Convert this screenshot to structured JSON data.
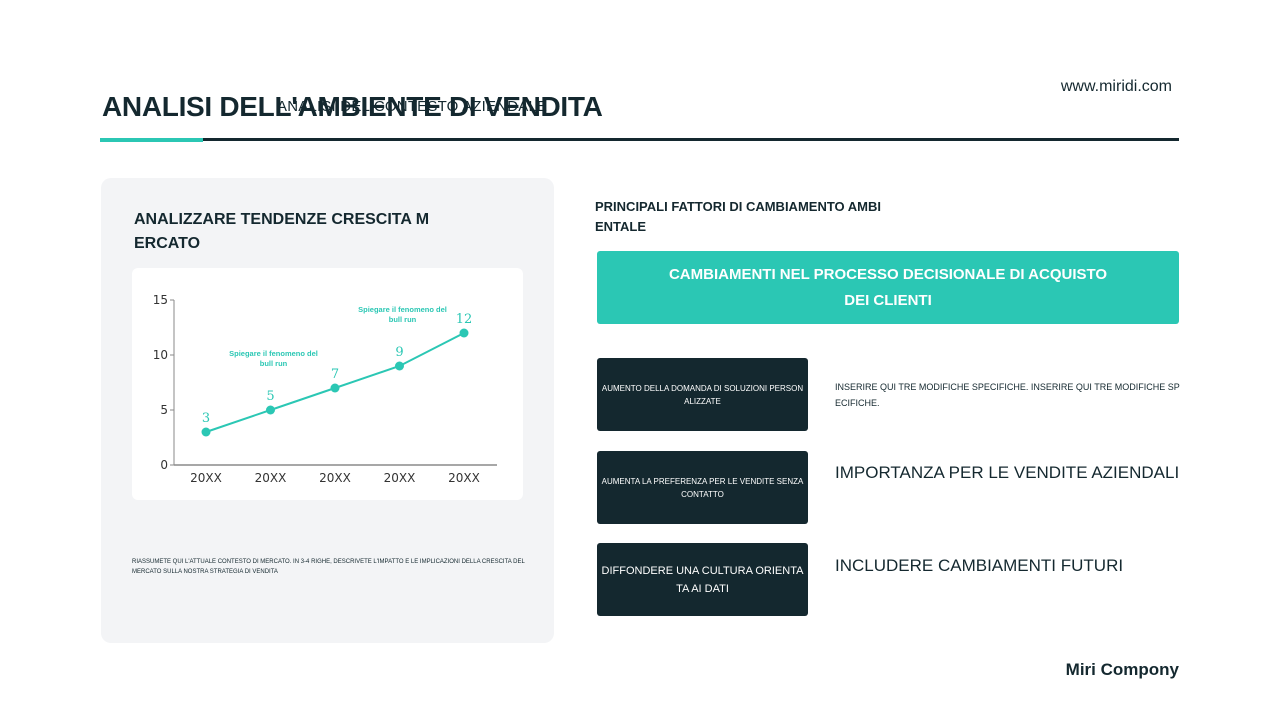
{
  "header": {
    "title": "ANALISI DELL'AMBIENTE DI VENDITA",
    "subtitle": "Analisi del contesto aziendale",
    "website": "www.miridi.com"
  },
  "left_panel": {
    "title": "ANALIZZARE TENDENZE CRESCITA MERCATO",
    "summary": "RIASSUMETE QUI L'ATTUALE CONTESTO DI MERCATO. IN 3-4 RIGHE, DESCRIVETE L'IMPATTO E LE IMPLICAZIONI DELLA CRESCITA DEL MERCATO SULLA NOSTRA STRATEGIA DI VENDITA"
  },
  "chart_data": {
    "type": "line",
    "categories": [
      "20XX",
      "20XX",
      "20XX",
      "20XX",
      "20XX"
    ],
    "values": [
      3,
      5,
      7,
      9,
      12
    ],
    "ylim": [
      0,
      15
    ],
    "yticks": [
      0,
      5,
      10,
      15
    ],
    "grid": false,
    "color": "#2bc7b4",
    "annotations": [
      {
        "text": [
          "Spiegare il fenomeno del",
          "bull run"
        ],
        "category_index": 1,
        "value": 5
      },
      {
        "text": [
          "Spiegare il fenomeno del",
          "bull run"
        ],
        "category_index": 3,
        "value": 9
      }
    ]
  },
  "right_panel": {
    "heading": "PRINCIPALI FATTORI DI CAMBIAMENTO AMBIENTALE",
    "banner": "CAMBIAMENTI NEL PROCESSO DECISIONALE DI ACQUISTO DEI CLIENTI",
    "factors": [
      {
        "label": "AUMENTO DELLA DOMANDA DI SOLUZIONI PERSONALIZZATE",
        "description": "INSERIRE QUI TRE MODIFICHE SPECIFICHE. INSERIRE QUI TRE MODIFICHE SPECIFICHE."
      },
      {
        "label": "AUMENTA LA PREFERENZA PER LE VENDITE SENZA CONTATTO",
        "description": "IMPORTANZA PER LE VENDITE AZIENDALI"
      },
      {
        "label": "DIFFONDERE UNA CULTURA ORIENTATA AI DATI",
        "description": "INCLUDERE CAMBIAMENTI FUTURI"
      }
    ]
  },
  "footer": {
    "brand": "Miri Compony"
  },
  "colors": {
    "accent": "#2bc7b4",
    "dark": "#14282f",
    "card_bg": "#f3f4f6"
  }
}
